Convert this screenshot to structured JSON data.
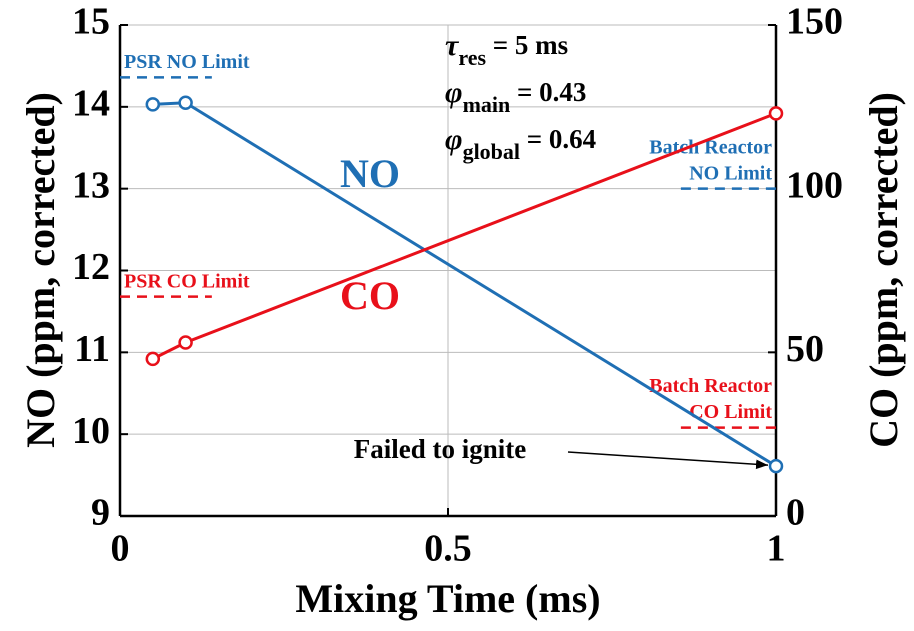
{
  "chart_data": {
    "type": "line",
    "x_label": "Mixing  Time  (ms)",
    "y_label": "NO (ppm, corrected)",
    "y2_label": "CO (ppm, corrected)",
    "xlim": [
      0,
      1
    ],
    "xticks": [
      0,
      0.5,
      1
    ],
    "ylim": [
      9,
      15
    ],
    "yticks": [
      9,
      10,
      11,
      12,
      13,
      14,
      15
    ],
    "y2lim": [
      0,
      150
    ],
    "y2ticks": [
      0,
      50,
      100,
      150
    ],
    "grid": true,
    "series": [
      {
        "name": "NO",
        "color": "#1f6fb4",
        "x": [
          0.05,
          0.1,
          1
        ],
        "values": [
          14.03,
          14.05,
          9.61
        ]
      },
      {
        "name": "CO",
        "color": "#e8101a",
        "axis": "y2",
        "x": [
          0.05,
          0.1,
          1
        ],
        "values": [
          48,
          53,
          123
        ]
      }
    ],
    "limits": [
      {
        "label": [
          "PSR NO Limit"
        ],
        "value": 14.36,
        "axis": "y",
        "x": [
          0,
          0.14
        ],
        "color": "#1f6fb4"
      },
      {
        "label": [
          "Batch Reactor",
          "NO Limit"
        ],
        "value": 13,
        "axis": "y",
        "x": [
          0.855,
          1
        ],
        "color": "#1f6fb4"
      },
      {
        "label": [
          "PSR CO Limit"
        ],
        "value": 67,
        "axis": "y2",
        "x": [
          0,
          0.14
        ],
        "color": "#e8101a"
      },
      {
        "label": [
          "Batch Reactor",
          "CO Limit"
        ],
        "value": 27,
        "axis": "y2",
        "x": [
          0.855,
          1
        ],
        "color": "#e8101a"
      }
    ],
    "parameters": [
      {
        "symbol": "τ",
        "sub": "res",
        "text": " = 5 ms"
      },
      {
        "symbol": "φ",
        "sub": "main",
        "text": " = 0.43"
      },
      {
        "symbol": "φ",
        "sub": "global",
        "text": " = 0.64"
      }
    ],
    "annotation": "Failed to ignite"
  }
}
